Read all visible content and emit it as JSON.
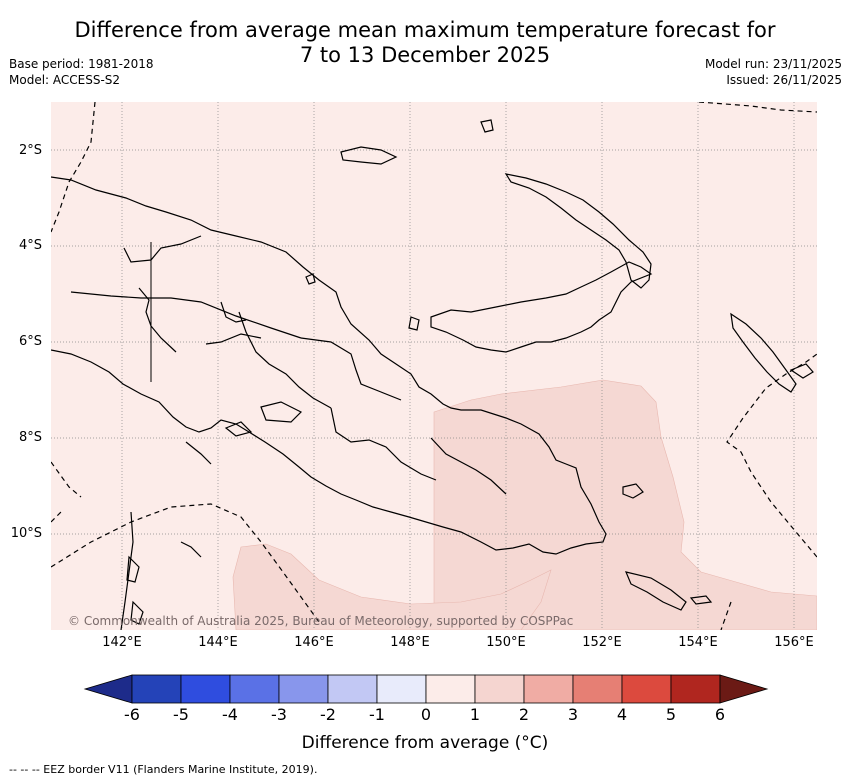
{
  "title_line1": "Difference from average mean maximum temperature forecast for",
  "title_line2": "7 to 13 December 2025",
  "base_period": "Base period: 1981-2018",
  "model": "Model: ACCESS-S2",
  "model_run": "Model run: 23/11/2025",
  "issued": "Issued: 26/11/2025",
  "lat_labels": [
    "2°S",
    "4°S",
    "6°S",
    "8°S",
    "10°S"
  ],
  "lon_labels": [
    "142°E",
    "144°E",
    "146°E",
    "148°E",
    "150°E",
    "152°E",
    "154°E",
    "156°E"
  ],
  "copyright": "© Commonwealth of Australia 2025, Bureau of Meteorology, supported by COSPPac",
  "colorbar": {
    "ticks": [
      "-6",
      "-5",
      "-4",
      "-3",
      "-2",
      "-1",
      "0",
      "1",
      "2",
      "3",
      "4",
      "5",
      "6"
    ],
    "colors": [
      "#1d2b8a",
      "#2443b8",
      "#2f4ddf",
      "#5a71e6",
      "#8896ec",
      "#c2c8f4",
      "#e8ebfb",
      "#fcece9",
      "#f5d5d0",
      "#f0aca4",
      "#e67f74",
      "#dc4a3e",
      "#b0261f",
      "#6b1a15"
    ],
    "title": "Difference from average (°C)"
  },
  "footnote": "-- -- -- EEZ border V11 (Flanders Marine Institute, 2019)."
}
